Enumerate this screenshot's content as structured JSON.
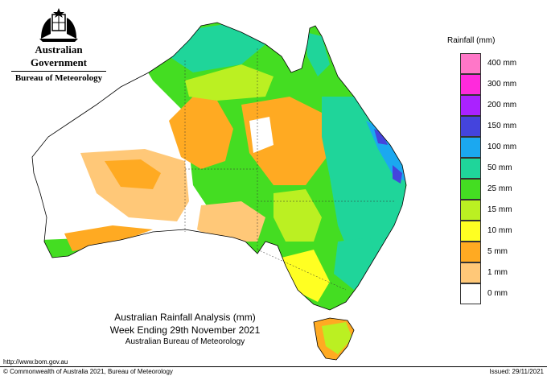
{
  "header": {
    "government": "Australian Government",
    "bureau": "Bureau of Meteorology"
  },
  "legend": {
    "title": "Rainfall (mm)",
    "items": [
      {
        "label": "400 mm",
        "color": "#ff77c8"
      },
      {
        "label": "300 mm",
        "color": "#ff2adc"
      },
      {
        "label": "200 mm",
        "color": "#aa22ff"
      },
      {
        "label": "150 mm",
        "color": "#4444dd"
      },
      {
        "label": "100 mm",
        "color": "#1ba8f0"
      },
      {
        "label": "50 mm",
        "color": "#1fd59a"
      },
      {
        "label": "25 mm",
        "color": "#44dd22"
      },
      {
        "label": "15 mm",
        "color": "#bbf022"
      },
      {
        "label": "10 mm",
        "color": "#ffff22"
      },
      {
        "label": "5 mm",
        "color": "#ffaa22"
      },
      {
        "label": "1 mm",
        "color": "#ffc878"
      },
      {
        "label": "0 mm",
        "color": "#ffffff"
      }
    ]
  },
  "caption": {
    "line1": "Australian Rainfall Analysis (mm)",
    "line2": "Week Ending 29th November 2021",
    "line3": "Australian Bureau of Meteorology"
  },
  "footer": {
    "url": "http://www.bom.gov.au",
    "copyright": "© Commonwealth of Australia 2021, Bureau of Meteorology",
    "issued": "Issued: 29/11/2021"
  }
}
